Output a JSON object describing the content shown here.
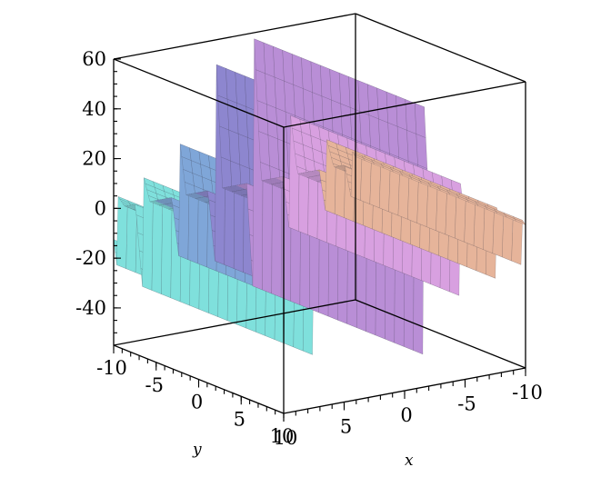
{
  "chart_data": {
    "type": "surface3d",
    "title": "",
    "xlabel": "x",
    "ylabel": "y",
    "zlabel": "",
    "xlim": [
      -10,
      10
    ],
    "ylim": [
      -10,
      10
    ],
    "zlim": [
      -55,
      60
    ],
    "x_ticks": [
      "10",
      "5",
      "0",
      "-5",
      "-10"
    ],
    "y_ticks": [
      "-10",
      "-5",
      "0",
      "5",
      "10"
    ],
    "z_ticks": [
      "60",
      "40",
      "20",
      "0",
      "-20",
      "-40"
    ],
    "x_tick_values": [
      10,
      5,
      0,
      -5,
      -10
    ],
    "y_tick_values": [
      -10,
      -5,
      0,
      5,
      10
    ],
    "z_tick_values": [
      60,
      40,
      20,
      0,
      -20,
      -40
    ],
    "surface": {
      "description_of_shape": "periodic sawtooth/tangent-like spikes along x; surface nearly constant in y",
      "spike_x_positions": [
        -9.7,
        -7.6,
        -4.6,
        -1.6,
        1.6,
        4.6,
        7.6,
        9.7
      ],
      "spike_peak_z": [
        5,
        12,
        25,
        60,
        60,
        25,
        12,
        5
      ],
      "spike_trough_z": [
        -15,
        -20,
        -25,
        -50,
        -30,
        -25,
        -35,
        -25
      ],
      "colormap": [
        "#7fe0dc",
        "#7fa6d8",
        "#8d86cf",
        "#b98ed6",
        "#d8a0e0",
        "#e6b49a"
      ]
    }
  }
}
